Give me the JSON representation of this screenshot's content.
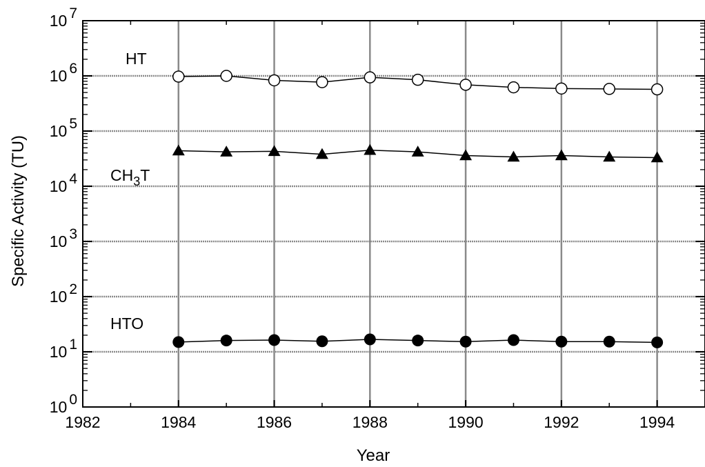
{
  "chart_data": {
    "type": "line",
    "title": "",
    "xlabel": "Year",
    "ylabel": "Specific Activity (TU)",
    "xlim": [
      1982,
      1995
    ],
    "ylim": [
      1,
      10000000
    ],
    "y_scale": "log",
    "grid": true,
    "x_ticks": [
      {
        "value": 1982,
        "label": "1982"
      },
      {
        "value": 1984,
        "label": "1984"
      },
      {
        "value": 1986,
        "label": "1986"
      },
      {
        "value": 1988,
        "label": "1988"
      },
      {
        "value": 1990,
        "label": "1990"
      },
      {
        "value": 1992,
        "label": "1992"
      },
      {
        "value": 1994,
        "label": "1994"
      }
    ],
    "y_ticks": [
      {
        "value": 1,
        "base": "10",
        "exp": "0"
      },
      {
        "value": 10,
        "base": "10",
        "exp": "1"
      },
      {
        "value": 100,
        "base": "10",
        "exp": "2"
      },
      {
        "value": 1000,
        "base": "10",
        "exp": "3"
      },
      {
        "value": 10000,
        "base": "10",
        "exp": "4"
      },
      {
        "value": 100000,
        "base": "10",
        "exp": "5"
      },
      {
        "value": 1000000,
        "base": "10",
        "exp": "6"
      },
      {
        "value": 10000000,
        "base": "10",
        "exp": "7"
      }
    ],
    "x": [
      1984,
      1985,
      1986,
      1987,
      1988,
      1989,
      1990,
      1991,
      1992,
      1993,
      1994
    ],
    "series": [
      {
        "name": "HT",
        "marker": "open-circle",
        "values": [
          970000,
          1000000,
          830000,
          770000,
          940000,
          850000,
          690000,
          620000,
          590000,
          580000,
          570000
        ]
      },
      {
        "name": "CH3T",
        "name_parts": {
          "main": "CH",
          "sub": "3",
          "tail": "T"
        },
        "marker": "filled-triangle",
        "values": [
          44000,
          42000,
          43000,
          38000,
          45000,
          42000,
          36000,
          34000,
          36000,
          34000,
          33000
        ]
      },
      {
        "name": "HTO",
        "marker": "filled-circle",
        "values": [
          15,
          16,
          16.3,
          15.5,
          16.8,
          16,
          15.3,
          16.3,
          15.3,
          15.3,
          14.8
        ]
      }
    ]
  }
}
